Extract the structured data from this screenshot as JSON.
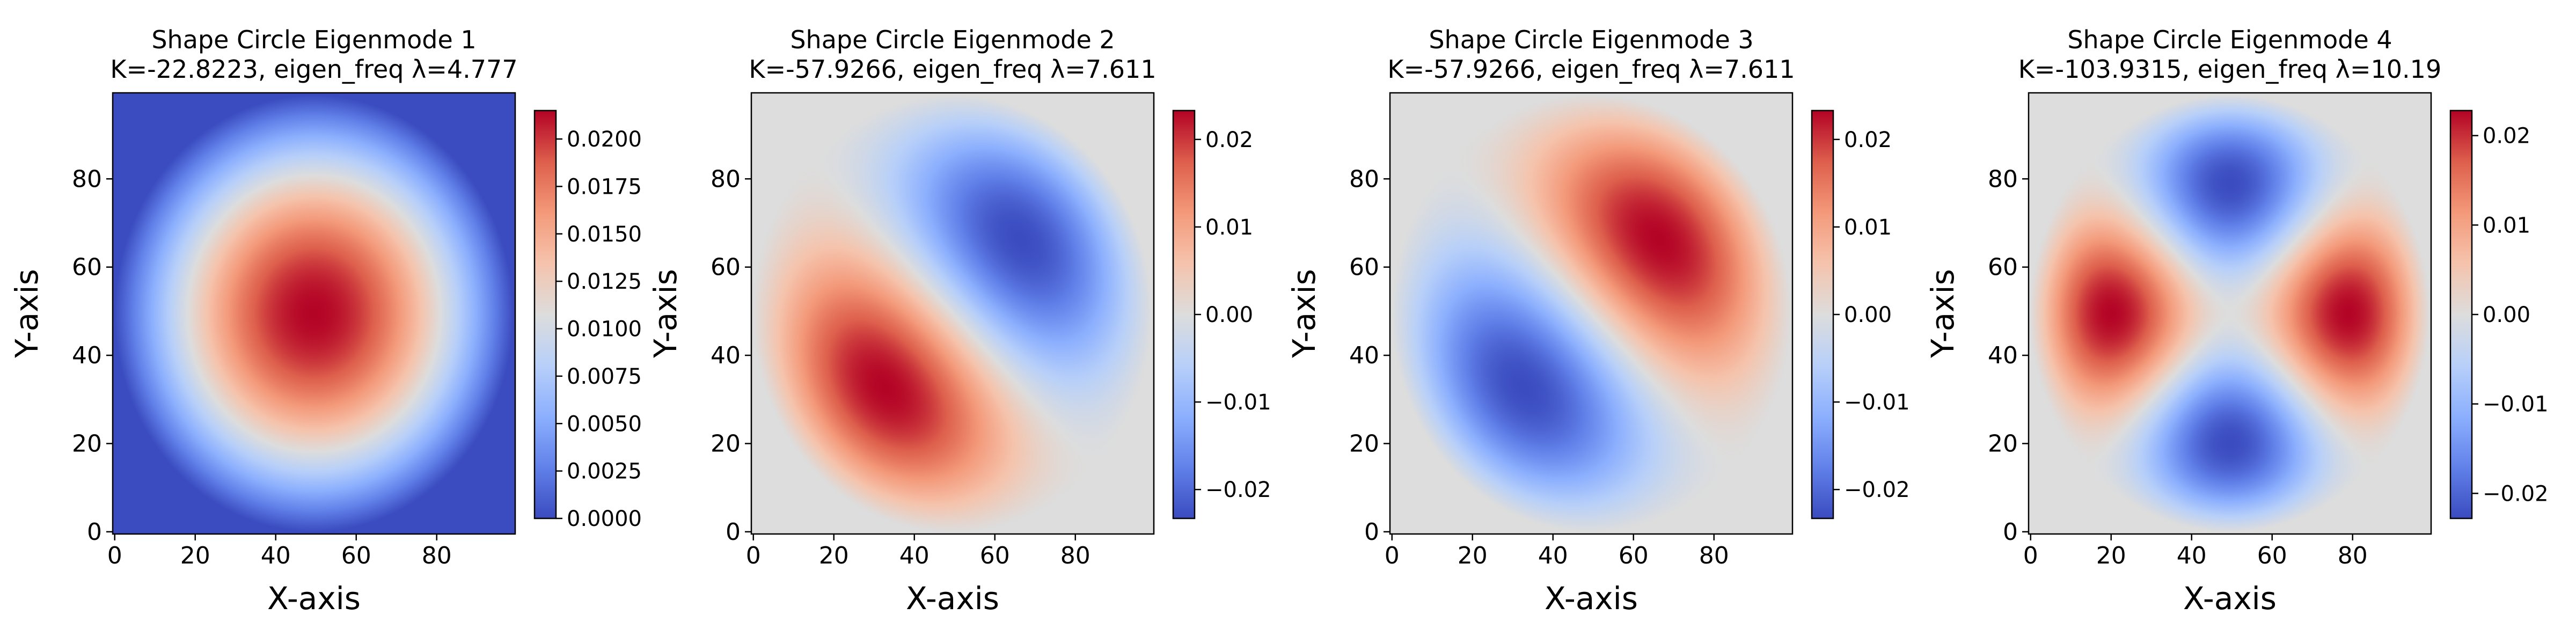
{
  "chart_data": [
    {
      "type": "heatmap",
      "mode": [
        0,
        0
      ],
      "title": "Shape Circle Eigenmode 1",
      "subtitle": "K=-22.8223, eigen_freq λ=4.777",
      "xlabel": "X-axis",
      "ylabel": "Y-axis",
      "xlim": [
        0,
        99
      ],
      "ylim": [
        0,
        99
      ],
      "xticks": [
        0,
        20,
        40,
        60,
        80
      ],
      "yticks": [
        0,
        20,
        40,
        60,
        80
      ],
      "colorbar": {
        "min": 0.0,
        "max": 0.0215,
        "ticks": [
          0.0,
          0.0025,
          0.005,
          0.0075,
          0.01,
          0.0125,
          0.015,
          0.0175,
          0.02
        ],
        "tick_labels": [
          "0.0000",
          "0.0025",
          "0.0050",
          "0.0075",
          "0.0100",
          "0.0125",
          "0.0150",
          "0.0175",
          "0.0200"
        ]
      },
      "colormap": "coolwarm",
      "background": "#3b4cc0",
      "peak": 0.0215
    },
    {
      "type": "heatmap",
      "mode": [
        1,
        1
      ],
      "title": "Shape Circle Eigenmode 2",
      "subtitle": "K=-57.9266, eigen_freq λ=7.611",
      "xlabel": "X-axis",
      "ylabel": "Y-axis",
      "xlim": [
        0,
        99
      ],
      "ylim": [
        0,
        99
      ],
      "xticks": [
        0,
        20,
        40,
        60,
        80
      ],
      "yticks": [
        0,
        20,
        40,
        60,
        80
      ],
      "colorbar": {
        "min": -0.0233,
        "max": 0.0233,
        "ticks": [
          -0.02,
          -0.01,
          0.0,
          0.01,
          0.02
        ],
        "tick_labels": [
          "−0.02",
          "−0.01",
          "0.00",
          "0.01",
          "0.02"
        ]
      },
      "colormap": "coolwarm",
      "background": "#dddddd",
      "peak": 0.0233
    },
    {
      "type": "heatmap",
      "mode": [
        1,
        -1
      ],
      "title": "Shape Circle Eigenmode 3",
      "subtitle": "K=-57.9266, eigen_freq λ=7.611",
      "xlabel": "X-axis",
      "ylabel": "Y-axis",
      "xlim": [
        0,
        99
      ],
      "ylim": [
        0,
        99
      ],
      "xticks": [
        0,
        20,
        40,
        60,
        80
      ],
      "yticks": [
        0,
        20,
        40,
        60,
        80
      ],
      "colorbar": {
        "min": -0.0233,
        "max": 0.0233,
        "ticks": [
          -0.02,
          -0.01,
          0.0,
          0.01,
          0.02
        ],
        "tick_labels": [
          "−0.02",
          "−0.01",
          "0.00",
          "0.01",
          "0.02"
        ]
      },
      "colormap": "coolwarm",
      "background": "#dddddd",
      "peak": 0.0233
    },
    {
      "type": "heatmap",
      "mode": [
        2,
        0
      ],
      "title": "Shape Circle Eigenmode 4",
      "subtitle": "K=-103.9315, eigen_freq λ=10.19",
      "xlabel": "X-axis",
      "ylabel": "Y-axis",
      "xlim": [
        0,
        99
      ],
      "ylim": [
        0,
        99
      ],
      "xticks": [
        0,
        20,
        40,
        60,
        80
      ],
      "yticks": [
        0,
        20,
        40,
        60,
        80
      ],
      "colorbar": {
        "min": -0.0228,
        "max": 0.0228,
        "ticks": [
          -0.02,
          -0.01,
          0.0,
          0.01,
          0.02
        ],
        "tick_labels": [
          "−0.02",
          "−0.01",
          "0.00",
          "0.01",
          "0.02"
        ]
      },
      "colormap": "coolwarm",
      "background": "#dddddd",
      "peak": 0.0228
    }
  ]
}
